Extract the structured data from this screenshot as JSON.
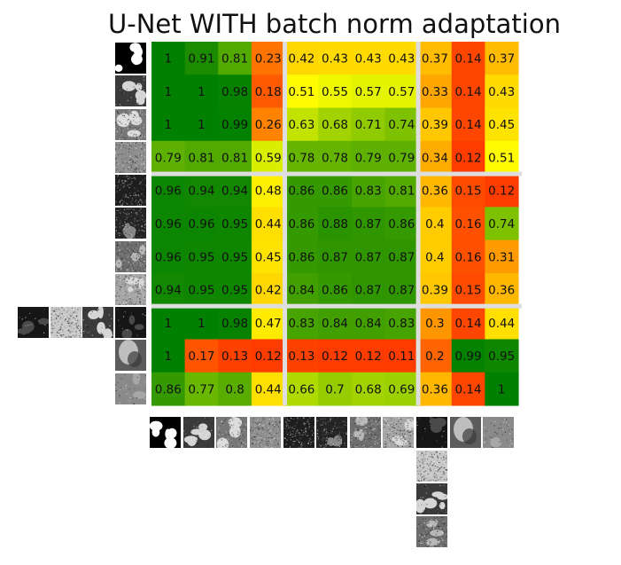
{
  "title": "U-Net WITH batch norm adaptation",
  "chart_data": {
    "type": "heatmap",
    "title": "U-Net WITH batch norm adaptation",
    "rows": 11,
    "cols": 11,
    "values": [
      [
        1.0,
        0.91,
        0.81,
        0.23,
        0.42,
        0.43,
        0.43,
        0.43,
        0.37,
        0.14,
        0.37
      ],
      [
        1.0,
        1.0,
        0.98,
        0.18,
        0.51,
        0.55,
        0.57,
        0.57,
        0.33,
        0.14,
        0.43
      ],
      [
        1.0,
        1.0,
        0.99,
        0.26,
        0.63,
        0.68,
        0.71,
        0.74,
        0.39,
        0.14,
        0.45
      ],
      [
        0.79,
        0.81,
        0.81,
        0.59,
        0.78,
        0.78,
        0.79,
        0.79,
        0.34,
        0.12,
        0.51
      ],
      [
        0.96,
        0.94,
        0.94,
        0.48,
        0.86,
        0.86,
        0.83,
        0.81,
        0.36,
        0.15,
        0.12
      ],
      [
        0.96,
        0.96,
        0.95,
        0.44,
        0.86,
        0.88,
        0.87,
        0.86,
        0.4,
        0.16,
        0.74
      ],
      [
        0.96,
        0.95,
        0.95,
        0.45,
        0.86,
        0.87,
        0.87,
        0.87,
        0.4,
        0.16,
        0.31
      ],
      [
        0.94,
        0.95,
        0.95,
        0.42,
        0.84,
        0.86,
        0.87,
        0.87,
        0.39,
        0.15,
        0.36
      ],
      [
        1.0,
        1.0,
        0.98,
        0.47,
        0.83,
        0.84,
        0.84,
        0.83,
        0.3,
        0.14,
        0.44
      ],
      [
        1.0,
        0.17,
        0.13,
        0.12,
        0.13,
        0.12,
        0.12,
        0.11,
        0.2,
        0.99,
        0.95
      ],
      [
        0.86,
        0.77,
        0.8,
        0.44,
        0.66,
        0.7,
        0.68,
        0.69,
        0.36,
        0.14,
        1.0
      ]
    ],
    "row_groups": [
      [
        0,
        3
      ],
      [
        4,
        7
      ],
      [
        8,
        10
      ]
    ],
    "col_groups": [
      [
        0,
        3
      ],
      [
        4,
        7
      ],
      [
        8,
        10
      ]
    ],
    "colormap": "red-yellow-green",
    "value_range": [
      0,
      1
    ],
    "colors": {
      "low": "#ff3300",
      "mid": "#ffff00",
      "high": "#008000",
      "separator": "#dedede"
    },
    "row_thumbnails": [
      {
        "style": "binary-blobs"
      },
      {
        "style": "gray-blobs"
      },
      {
        "style": "gray-blobs-noisy"
      },
      {
        "style": "noise-light"
      },
      {
        "style": "dark-noise"
      },
      {
        "style": "dark-noise-blobs"
      },
      {
        "style": "mid-noise-blobs"
      },
      {
        "style": "light-noise-blobs"
      },
      {
        "style": "dark-blobs",
        "extra_left": [
          "dark-blobs",
          "light-noise",
          "gray-blobs"
        ]
      },
      {
        "style": "smooth-blob"
      },
      {
        "style": "gray-texture"
      }
    ],
    "col_thumbnails": [
      {
        "style": "binary-blobs"
      },
      {
        "style": "gray-blobs"
      },
      {
        "style": "gray-blobs-noisy"
      },
      {
        "style": "noise-light"
      },
      {
        "style": "dark-noise"
      },
      {
        "style": "dark-noise-blobs"
      },
      {
        "style": "mid-noise-blobs"
      },
      {
        "style": "light-noise-blobs"
      },
      {
        "style": "dark-blobs",
        "extra_below": [
          "light-noise",
          "gray-blobs",
          "mid-noise-blobs"
        ]
      },
      {
        "style": "smooth-blob"
      },
      {
        "style": "gray-texture"
      }
    ]
  }
}
